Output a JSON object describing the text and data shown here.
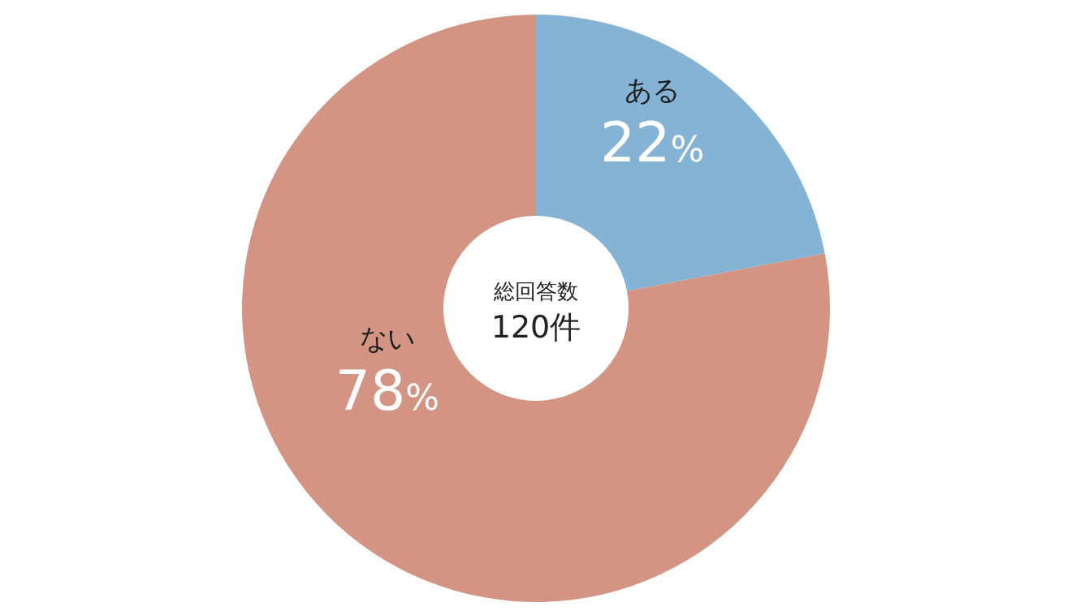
{
  "chart_data": {
    "type": "donut",
    "categories": [
      "ある",
      "ない"
    ],
    "values": [
      22,
      78
    ],
    "colors": [
      "#85b3d6",
      "#d49483"
    ],
    "value_labels": [
      "22%",
      "78%"
    ],
    "annotations": [
      "総回答数",
      "120件"
    ]
  }
}
